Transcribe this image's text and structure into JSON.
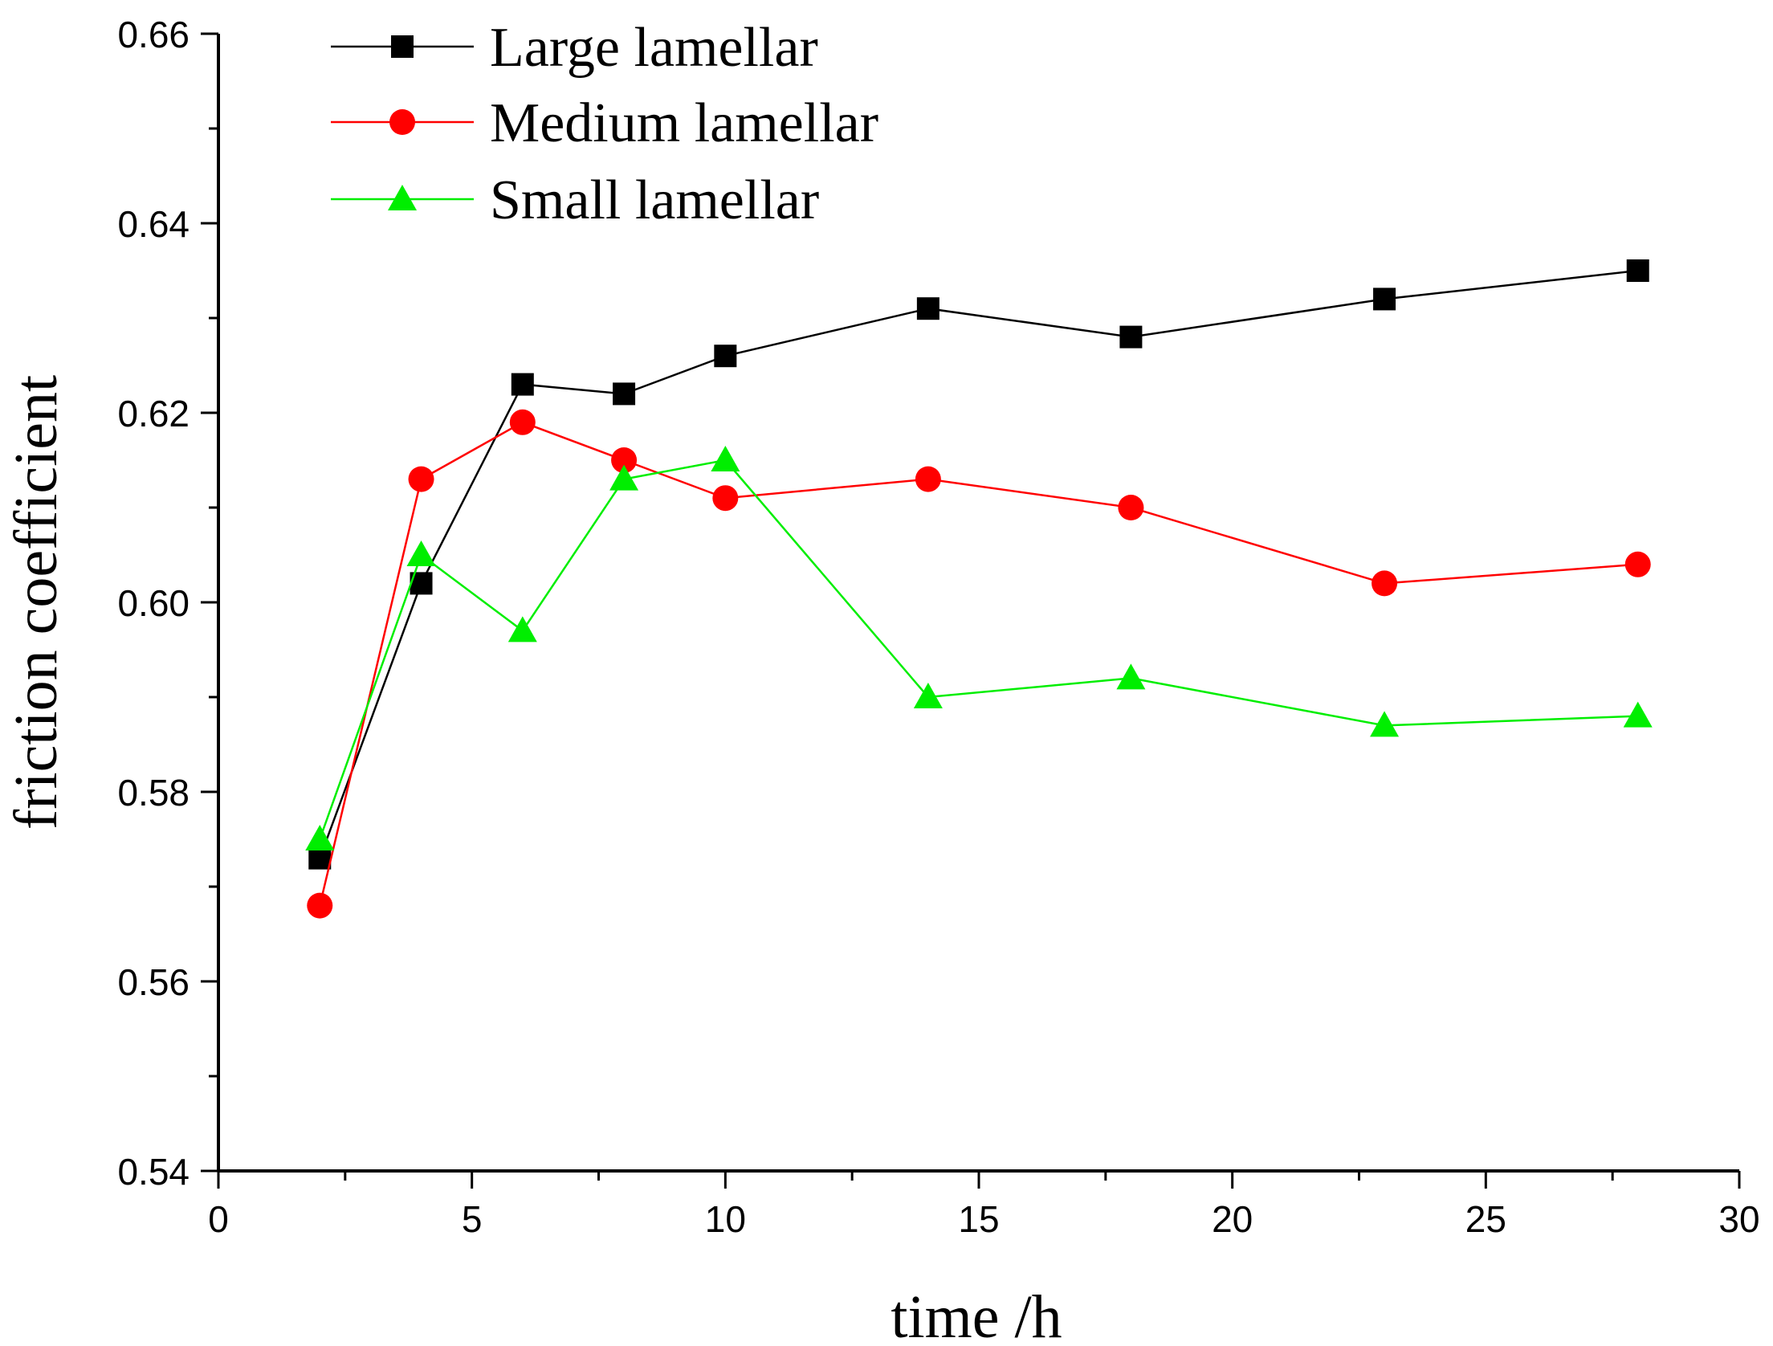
{
  "chart_data": {
    "type": "line",
    "title": "",
    "xlabel": "time /h",
    "ylabel": "friction coefficient",
    "xlim": [
      0,
      30
    ],
    "ylim": [
      0.54,
      0.66
    ],
    "xticks": [
      0,
      5,
      10,
      15,
      20,
      25,
      30
    ],
    "xtick_labels": [
      "0",
      "5",
      "10",
      "15",
      "20",
      "25",
      "30"
    ],
    "yticks": [
      0.54,
      0.56,
      0.58,
      0.6,
      0.62,
      0.64,
      0.66
    ],
    "ytick_labels": [
      "0.54",
      "0.56",
      "0.58",
      "0.60",
      "0.62",
      "0.64",
      "0.66"
    ],
    "legend_position": "top-left",
    "grid": false,
    "x": [
      2,
      4,
      6,
      8,
      10,
      14,
      18,
      23,
      28
    ],
    "series": [
      {
        "name": "Large lamellar",
        "marker": "square",
        "color": "#000000",
        "values": [
          0.573,
          0.602,
          0.623,
          0.622,
          0.626,
          0.631,
          0.628,
          0.632,
          0.635
        ]
      },
      {
        "name": "Medium lamellar",
        "marker": "circle",
        "color": "#ff0000",
        "values": [
          0.568,
          0.613,
          0.619,
          0.615,
          0.611,
          0.613,
          0.61,
          0.602,
          0.604
        ]
      },
      {
        "name": "Small lamellar",
        "marker": "triangle",
        "color": "#00ee00",
        "values": [
          0.575,
          0.605,
          0.597,
          0.613,
          0.615,
          0.59,
          0.592,
          0.587,
          0.588
        ]
      }
    ]
  }
}
